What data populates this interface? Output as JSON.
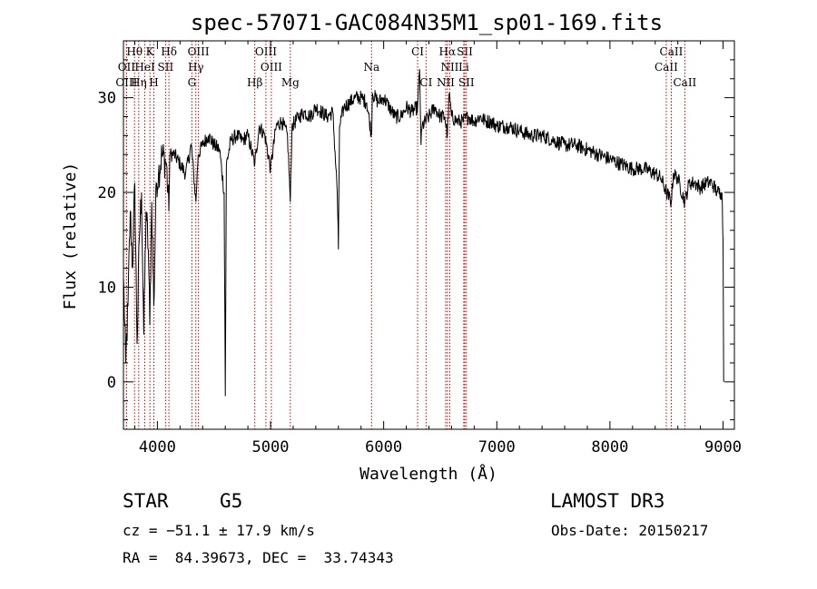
{
  "chart_data": {
    "type": "line",
    "title": "spec-57071-GAC084N35M1_sp01-169.fits",
    "xlabel": "Wavelength (Å)",
    "ylabel": "Flux (relative)",
    "xlim": [
      3700,
      9100
    ],
    "ylim": [
      -5,
      36
    ],
    "xticks": [
      4000,
      5000,
      6000,
      7000,
      8000,
      9000
    ],
    "yticks": [
      0,
      10,
      20,
      30
    ],
    "series": [
      {
        "name": "spectrum",
        "x": [
          3700,
          3720,
          3740,
          3760,
          3780,
          3800,
          3820,
          3840,
          3860,
          3880,
          3900,
          3920,
          3933,
          3950,
          3968,
          3990,
          4010,
          4040,
          4080,
          4101,
          4110,
          4150,
          4200,
          4250,
          4300,
          4340,
          4360,
          4400,
          4450,
          4500,
          4550,
          4590,
          4600,
          4610,
          4650,
          4700,
          4750,
          4800,
          4861,
          4900,
          4950,
          5000,
          5050,
          5100,
          5150,
          5175,
          5190,
          5250,
          5300,
          5350,
          5400,
          5450,
          5500,
          5550,
          5590,
          5600,
          5610,
          5650,
          5700,
          5750,
          5800,
          5850,
          5893,
          5900,
          5950,
          6000,
          6050,
          6100,
          6150,
          6200,
          6250,
          6300,
          6318,
          6330,
          6340,
          6400,
          6450,
          6500,
          6540,
          6563,
          6580,
          6600,
          6650,
          6700,
          6750,
          6800,
          6850,
          6900,
          6950,
          7000,
          7100,
          7200,
          7300,
          7400,
          7500,
          7600,
          7700,
          7800,
          7900,
          8000,
          8100,
          8200,
          8300,
          8400,
          8450,
          8500,
          8542,
          8560,
          8600,
          8662,
          8700,
          8750,
          8800,
          8850,
          8900,
          8950,
          8980,
          8990,
          9000,
          9005
        ],
        "y": [
          11,
          2,
          8,
          18,
          12,
          21,
          4,
          15,
          20,
          5,
          18,
          14,
          6,
          19,
          8,
          21,
          22,
          24,
          23,
          18,
          24,
          24,
          23,
          22,
          25,
          19,
          24,
          25,
          26,
          25,
          24.5,
          20,
          -1.5,
          23,
          25.5,
          26,
          25.5,
          26,
          23,
          27,
          26,
          22.5,
          27,
          27.5,
          26,
          19,
          27,
          28,
          28.5,
          28,
          29,
          28.5,
          28,
          28.5,
          20,
          14,
          27,
          29,
          29.5,
          30,
          30,
          29.5,
          26,
          30.5,
          29.5,
          30,
          29,
          28,
          28,
          29,
          28.5,
          29,
          33,
          25,
          27,
          28,
          29,
          28,
          28,
          26,
          30.5,
          28,
          27.5,
          27.5,
          28,
          27.5,
          28,
          27.5,
          27.5,
          27,
          27,
          26.5,
          26,
          26,
          25.5,
          25,
          25,
          24.5,
          24,
          23.5,
          23,
          22.5,
          22.5,
          22,
          21.5,
          20,
          19,
          22,
          21.5,
          19,
          21,
          21,
          20.5,
          21,
          21,
          20,
          20,
          20,
          15,
          0
        ]
      }
    ],
    "lines": [
      {
        "label": "Hθ",
        "x": 3798,
        "row": 0
      },
      {
        "label": "K",
        "x": 3934,
        "row": 0
      },
      {
        "label": "Hδ",
        "x": 4102,
        "row": 0
      },
      {
        "label": "OIII",
        "x": 4363,
        "row": 0
      },
      {
        "label": "OIII",
        "x": 4959,
        "row": 0
      },
      {
        "label": "CI",
        "x": 6300,
        "row": 0
      },
      {
        "label": "Hα",
        "x": 6563,
        "row": 0
      },
      {
        "label": "SII",
        "x": 6717,
        "row": 0
      },
      {
        "label": "CaII",
        "x": 8542,
        "row": 0
      },
      {
        "label": "OII",
        "x": 3727,
        "row": 1
      },
      {
        "label": "HeI",
        "x": 3889,
        "row": 1
      },
      {
        "label": "SII",
        "x": 4072,
        "row": 1
      },
      {
        "label": "Hγ",
        "x": 4340,
        "row": 1
      },
      {
        "label": "OIII",
        "x": 5007,
        "row": 1
      },
      {
        "label": "Na",
        "x": 5893,
        "row": 1
      },
      {
        "label": "NII",
        "x": 6584,
        "row": 1
      },
      {
        "label": "Li",
        "x": 6708,
        "row": 1
      },
      {
        "label": "CaII",
        "x": 8498,
        "row": 1
      },
      {
        "label": "OIII",
        "x": 3727,
        "row": 2
      },
      {
        "label": "Hη",
        "x": 3835,
        "row": 2
      },
      {
        "label": "H",
        "x": 3969,
        "row": 2
      },
      {
        "label": "G",
        "x": 4305,
        "row": 2
      },
      {
        "label": "Hβ",
        "x": 4861,
        "row": 2
      },
      {
        "label": "Mg",
        "x": 5175,
        "row": 2
      },
      {
        "label": "CI",
        "x": 6375,
        "row": 2
      },
      {
        "label": "NII",
        "x": 6548,
        "row": 2
      },
      {
        "label": "SII",
        "x": 6731,
        "row": 2
      },
      {
        "label": "CaII",
        "x": 8662,
        "row": 2
      }
    ]
  },
  "info": {
    "object_type": "STAR",
    "subclass": "G5",
    "survey": "LAMOST DR3",
    "cz": "cz = −51.1 ± 17.9 km/s",
    "obs_date": "Obs-Date: 20150217",
    "coords": "RA =  84.39673, DEC =  33.74343"
  },
  "colors": {
    "spectrum": "#000000",
    "lines": "#cc0000",
    "axes": "#000000"
  }
}
